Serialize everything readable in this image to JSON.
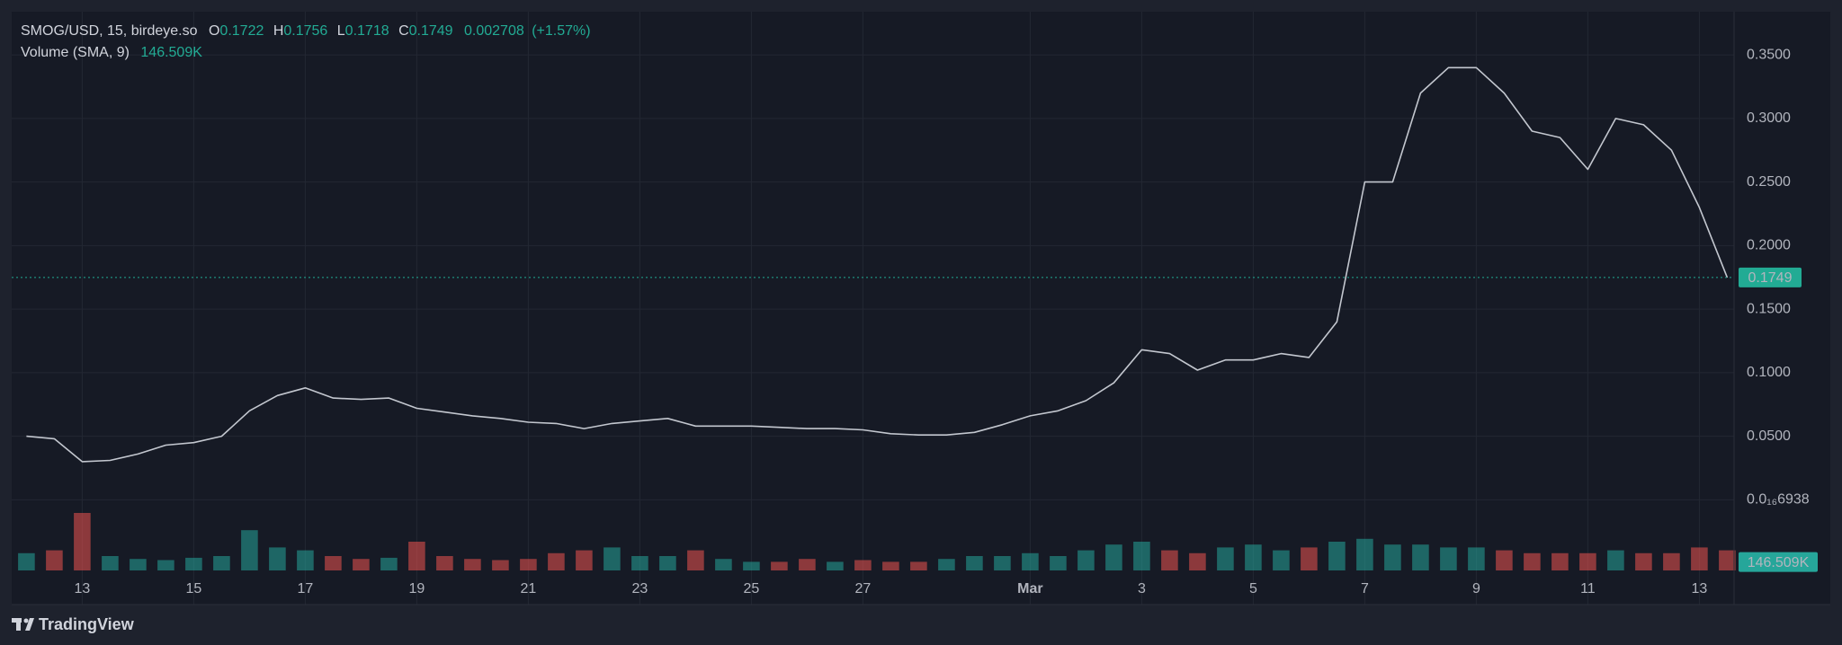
{
  "chart_data": {
    "type": "line",
    "header": {
      "symbol": "SMOG/USD, 15, birdeye.so",
      "ohlc": [
        {
          "label": "O",
          "value": 0.1722
        },
        {
          "label": "H",
          "value": 0.1756
        },
        {
          "label": "L",
          "value": 0.1718
        },
        {
          "label": "C",
          "value": 0.1749
        }
      ],
      "change": 0.002708,
      "change_pct": "(+1.57%)",
      "volume_label": "Volume (SMA, 9)",
      "volume_sma": "146.509K"
    },
    "categories": [
      null,
      null,
      "13",
      null,
      null,
      null,
      "15",
      null,
      null,
      null,
      "17",
      null,
      null,
      null,
      "19",
      null,
      null,
      null,
      "21",
      null,
      null,
      null,
      "23",
      null,
      null,
      null,
      "25",
      null,
      null,
      null,
      "27",
      null,
      null,
      null,
      null,
      null,
      "Mar",
      null,
      null,
      null,
      "3",
      null,
      null,
      null,
      "5",
      null,
      null,
      null,
      "7",
      null,
      null,
      null,
      "9",
      null,
      null,
      null,
      "11",
      null,
      null,
      null,
      "13",
      null
    ],
    "values": [
      0.05,
      0.048,
      0.03,
      0.031,
      0.036,
      0.043,
      0.045,
      0.05,
      0.07,
      0.082,
      0.088,
      0.08,
      0.079,
      0.08,
      0.072,
      0.069,
      0.066,
      0.064,
      0.061,
      0.06,
      0.056,
      0.06,
      0.062,
      0.064,
      0.058,
      0.058,
      0.058,
      0.057,
      0.056,
      0.056,
      0.055,
      0.052,
      0.051,
      0.051,
      0.053,
      0.059,
      0.066,
      0.07,
      0.078,
      0.092,
      0.118,
      0.115,
      0.102,
      0.11,
      0.11,
      0.115,
      0.112,
      0.14,
      0.25,
      0.25,
      0.32,
      0.34,
      0.34,
      0.32,
      0.29,
      0.285,
      0.26,
      0.3,
      0.295,
      0.275,
      0.23,
      0.1749
    ],
    "color": "#c3c7cf",
    "ylim": [
      -0.0556,
      0.384
    ],
    "yticks": [
      {
        "value": 6.938e-18,
        "label": "0.0₁₆6938"
      },
      {
        "value": 0.05,
        "label": "0.0500"
      },
      {
        "value": 0.1,
        "label": "0.1000"
      },
      {
        "value": 0.15,
        "label": "0.1500"
      },
      {
        "value": 0.2,
        "label": "0.2000"
      },
      {
        "value": 0.25,
        "label": "0.2500"
      },
      {
        "value": 0.3,
        "label": "0.3000"
      },
      {
        "value": 0.35,
        "label": "0.3500"
      }
    ],
    "grid": true,
    "last_price": 0.1749,
    "last_price_color": "#22ab94",
    "volume": {
      "values": [
        300000,
        350000,
        1000000,
        250000,
        200000,
        180000,
        220000,
        250000,
        700000,
        400000,
        350000,
        250000,
        200000,
        220000,
        500000,
        250000,
        200000,
        180000,
        200000,
        300000,
        350000,
        400000,
        250000,
        250000,
        350000,
        200000,
        150000,
        150000,
        200000,
        150000,
        180000,
        150000,
        150000,
        200000,
        250000,
        250000,
        300000,
        250000,
        350000,
        450000,
        500000,
        350000,
        300000,
        400000,
        450000,
        350000,
        400000,
        500000,
        550000,
        450000,
        450000,
        400000,
        400000,
        350000,
        300000,
        300000,
        300000,
        350000,
        300000,
        300000,
        400000,
        350000
      ],
      "ylim": [
        0,
        1250000
      ],
      "last": {
        "value": 146509,
        "label": "146.509K"
      },
      "up_color": "#26a69a",
      "down_color": "#ef5350"
    },
    "footer": "TradingView"
  }
}
